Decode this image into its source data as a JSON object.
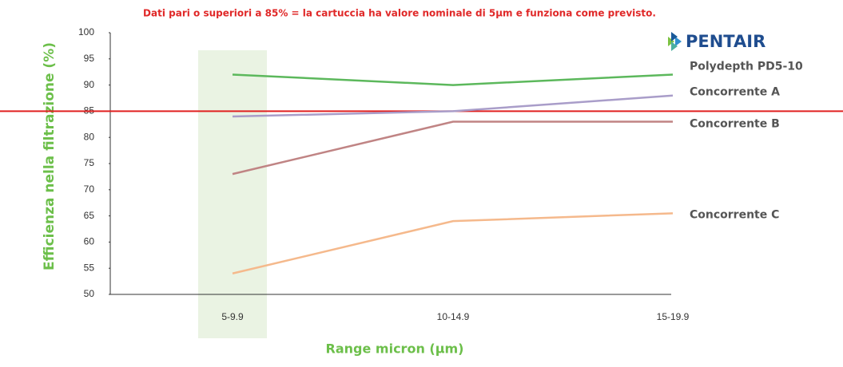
{
  "chart_data": {
    "type": "line",
    "title": "Dati pari o superiori a 85% = la cartuccia ha valore nominale di 5µm e funziona come previsto.",
    "brand": "PENTAIR",
    "xlabel": "Range micron (µm)",
    "ylabel": "Efficienza nella filtrazione (%)",
    "categories": [
      "5-9.9",
      "10-14.9",
      "15-19.9"
    ],
    "series": [
      {
        "name": "Polydepth PD5-10",
        "color": "#5cb85c",
        "values": [
          92,
          90,
          92
        ]
      },
      {
        "name": "Concorrente A",
        "color": "#a99dc9",
        "values": [
          84,
          85,
          88
        ]
      },
      {
        "name": "Concorrente B",
        "color": "#c08484",
        "values": [
          73,
          83,
          83
        ]
      },
      {
        "name": "Concorrente C",
        "color": "#f5b98c",
        "values": [
          54,
          64,
          65.5
        ]
      }
    ],
    "threshold": 85,
    "threshold_color": "#e02020",
    "ylim": [
      50,
      100
    ],
    "yticks": [
      50,
      55,
      60,
      65,
      70,
      75,
      80,
      85,
      90,
      95,
      100
    ],
    "grid": false
  }
}
